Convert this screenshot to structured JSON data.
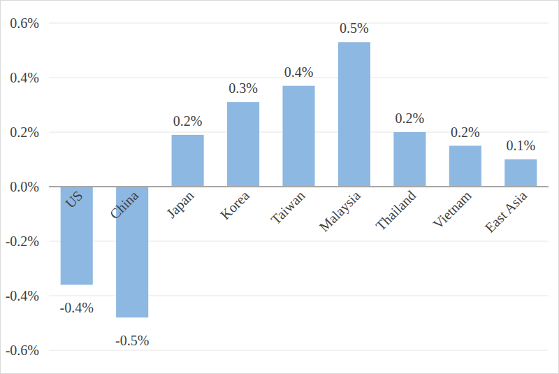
{
  "chart_data": {
    "type": "bar",
    "categories": [
      "US",
      "China",
      "Japan",
      "Korea",
      "Taiwan",
      "Malaysia",
      "Thailand",
      "Vietnam",
      "East Asia"
    ],
    "values": [
      -0.36,
      -0.48,
      0.19,
      0.31,
      0.37,
      0.53,
      0.2,
      0.15,
      0.1
    ],
    "value_labels": [
      "-0.4%",
      "-0.5%",
      "0.2%",
      "0.3%",
      "0.4%",
      "0.5%",
      "0.2%",
      "0.2%",
      "0.1%"
    ],
    "color": "#8db8e2",
    "ylim": [
      -0.6,
      0.6
    ],
    "yticks": [
      {
        "value": -0.6,
        "label": "-0.6%"
      },
      {
        "value": -0.4,
        "label": "-0.4%"
      },
      {
        "value": -0.2,
        "label": "-0.2%"
      },
      {
        "value": 0,
        "label": "0.0%"
      },
      {
        "value": 0.2,
        "label": "0.2%"
      },
      {
        "value": 0.4,
        "label": "0.4%"
      },
      {
        "value": 0.6,
        "label": "0.6%"
      }
    ],
    "grid": true,
    "data_labels": true
  }
}
